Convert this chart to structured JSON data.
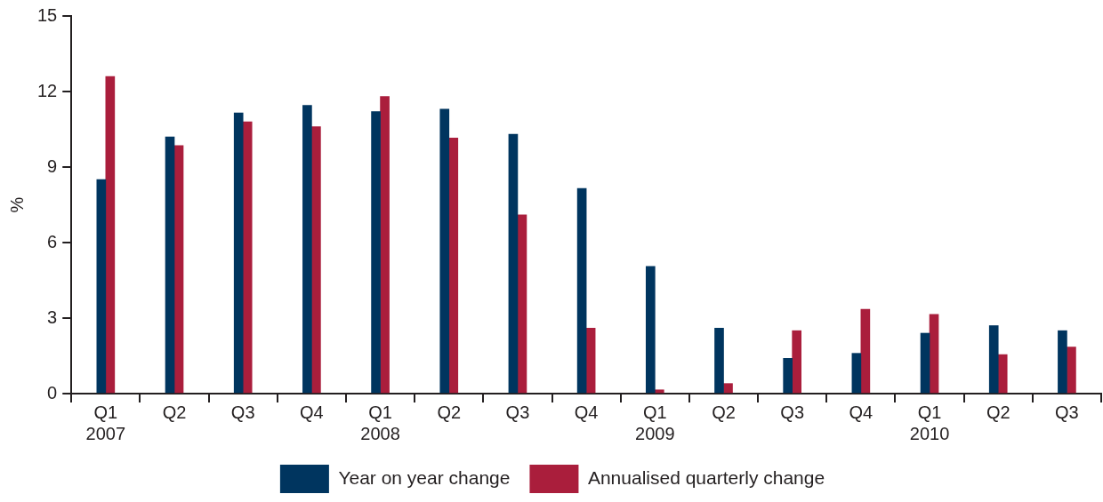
{
  "chart_data": {
    "type": "bar",
    "ylabel": "%",
    "categories": [
      "Q1\n2007",
      "Q2",
      "Q3",
      "Q4",
      "Q1\n2008",
      "Q2",
      "Q3",
      "Q4",
      "Q1\n2009",
      "Q2",
      "Q3",
      "Q4",
      "Q1\n2010",
      "Q2",
      "Q3"
    ],
    "series": [
      {
        "name": "Year on year change",
        "color": "#00355f",
        "values": [
          8.5,
          10.2,
          11.15,
          11.45,
          11.2,
          11.3,
          10.3,
          8.15,
          5.05,
          2.6,
          1.4,
          1.6,
          2.4,
          2.7,
          2.5
        ]
      },
      {
        "name": "Annualised quarterly change",
        "color": "#aa1e3c",
        "values": [
          12.6,
          9.85,
          10.8,
          10.6,
          11.8,
          10.15,
          7.1,
          2.6,
          0.15,
          0.4,
          2.5,
          3.35,
          3.15,
          1.55,
          1.85
        ]
      }
    ],
    "ylim": [
      0,
      15
    ],
    "yticks": [
      0,
      3,
      6,
      9,
      12,
      15
    ],
    "grid": false,
    "legend": "bottom"
  }
}
